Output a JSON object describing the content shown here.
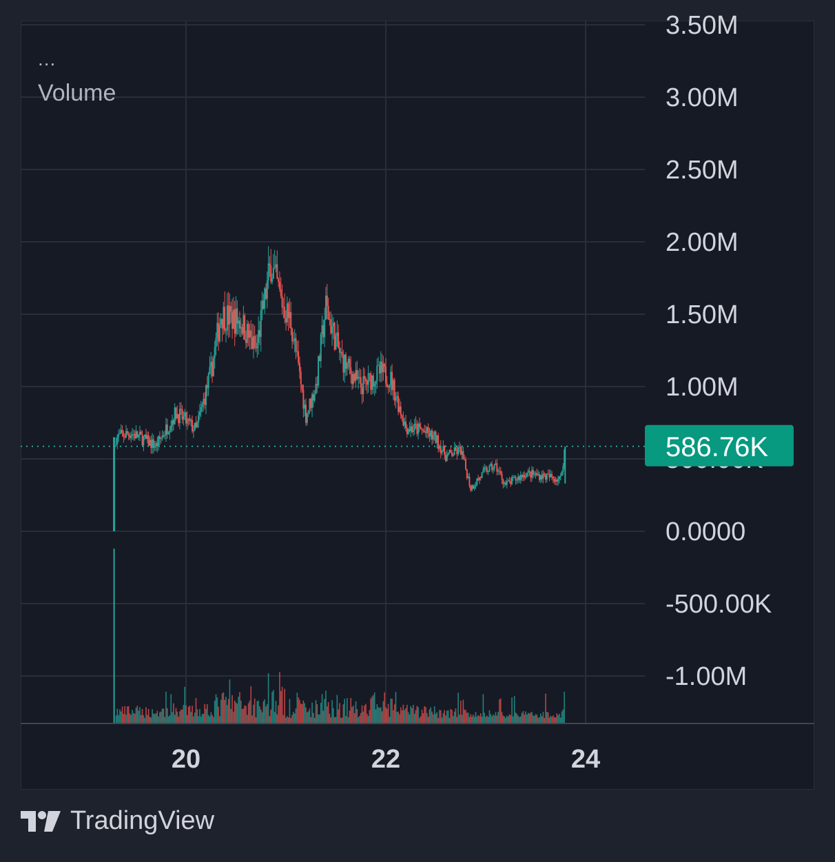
{
  "legend": {
    "more": "...",
    "volume_label": "Volume"
  },
  "branding": {
    "name": "TradingView",
    "icon": "tradingview-logo-icon"
  },
  "colors": {
    "background": "#1e222d",
    "plot_background": "#161a25",
    "grid": "#2a2e39",
    "up": "#26a69a",
    "down": "#ef5350",
    "axis_text": "#d1d4dc",
    "last_price_bg": "#089981"
  },
  "chart_data": {
    "type": "candlestick",
    "y_axis": {
      "ticks": [
        3500000,
        3000000,
        2500000,
        2000000,
        1500000,
        1000000,
        500000,
        0,
        -500000,
        -1000000
      ],
      "tick_labels": [
        "3.50M",
        "3.00M",
        "2.50M",
        "2.00M",
        "1.50M",
        "1.00M",
        "500.00K",
        "0.0000",
        "-500.00K",
        "-1.00M"
      ]
    },
    "x_axis": {
      "tick_labels": [
        "20",
        "22",
        "24"
      ],
      "tick_values": [
        20,
        22,
        24
      ]
    },
    "last_price": {
      "value": 586760,
      "label": "586.76K"
    },
    "anchors": [
      [
        19.28,
        0
      ],
      [
        19.3,
        650000
      ],
      [
        19.45,
        680000
      ],
      [
        19.7,
        590000
      ],
      [
        19.9,
        820000
      ],
      [
        20.1,
        700000
      ],
      [
        20.25,
        1100000
      ],
      [
        20.35,
        1500000
      ],
      [
        20.55,
        1450000
      ],
      [
        20.7,
        1250000
      ],
      [
        20.85,
        1850000
      ],
      [
        20.95,
        1600000
      ],
      [
        21.05,
        1450000
      ],
      [
        21.2,
        800000
      ],
      [
        21.3,
        1000000
      ],
      [
        21.4,
        1550000
      ],
      [
        21.55,
        1200000
      ],
      [
        21.75,
        1000000
      ],
      [
        21.95,
        1100000
      ],
      [
        22.05,
        1050000
      ],
      [
        22.2,
        720000
      ],
      [
        22.35,
        700000
      ],
      [
        22.5,
        640000
      ],
      [
        22.6,
        520000
      ],
      [
        22.75,
        560000
      ],
      [
        22.85,
        300000
      ],
      [
        23.0,
        420000
      ],
      [
        23.1,
        450000
      ],
      [
        23.2,
        320000
      ],
      [
        23.4,
        400000
      ],
      [
        23.6,
        380000
      ],
      [
        23.75,
        360000
      ],
      [
        23.79,
        560000
      ]
    ],
    "volume_series": {
      "name": "Volume"
    }
  }
}
